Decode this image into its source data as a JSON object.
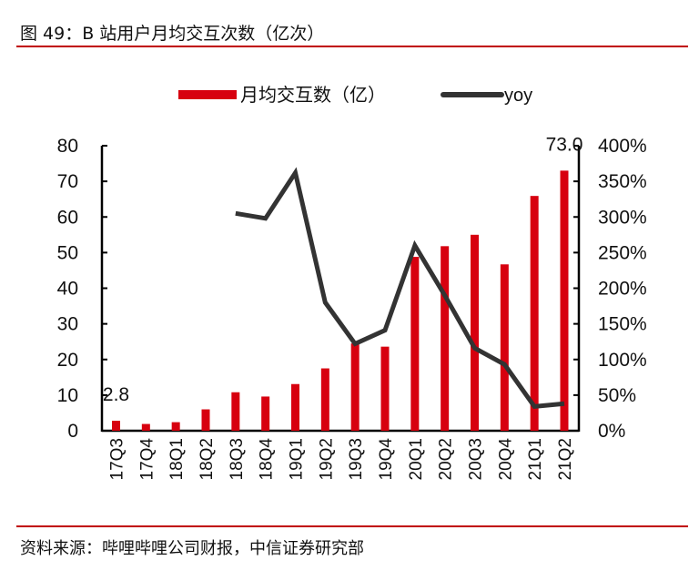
{
  "header": {
    "title": "图 49：B 站用户月均交互次数（亿次）"
  },
  "footer": {
    "source": "资料来源：哔哩哔哩公司财报，中信证券研究部"
  },
  "colors": {
    "bar": "#d7000f",
    "line": "#333333",
    "rule": "#c00000"
  },
  "chart_data": {
    "type": "bar+line",
    "categories": [
      "17Q3",
      "17Q4",
      "18Q1",
      "18Q2",
      "18Q3",
      "18Q4",
      "19Q1",
      "19Q2",
      "19Q3",
      "19Q4",
      "20Q1",
      "20Q2",
      "20Q3",
      "20Q4",
      "21Q1",
      "21Q2"
    ],
    "series": [
      {
        "name": "月均交互数（亿）",
        "type": "bar",
        "axis": "left",
        "values": [
          2.8,
          1.9,
          2.4,
          6.0,
          10.8,
          9.6,
          13.1,
          17.5,
          24.5,
          23.6,
          48.8,
          51.8,
          55.0,
          46.7,
          65.9,
          73.0
        ]
      },
      {
        "name": "yoy",
        "type": "line",
        "axis": "right",
        "values": [
          null,
          null,
          null,
          null,
          305,
          298,
          362,
          180,
          122,
          141,
          260,
          190,
          116,
          93,
          34,
          38
        ]
      }
    ],
    "data_labels": [
      {
        "index": 0,
        "text": "2.8"
      },
      {
        "index": 15,
        "text": "73.0"
      }
    ],
    "left_axis": {
      "ylim": [
        0,
        80
      ],
      "ticks": [
        "0",
        "10",
        "20",
        "30",
        "40",
        "50",
        "60",
        "70",
        "80"
      ]
    },
    "right_axis": {
      "ylim": [
        0,
        400
      ],
      "ticks": [
        "0%",
        "50%",
        "100%",
        "150%",
        "200%",
        "250%",
        "300%",
        "350%",
        "400%"
      ]
    },
    "legend": "top-center",
    "grid": false
  }
}
